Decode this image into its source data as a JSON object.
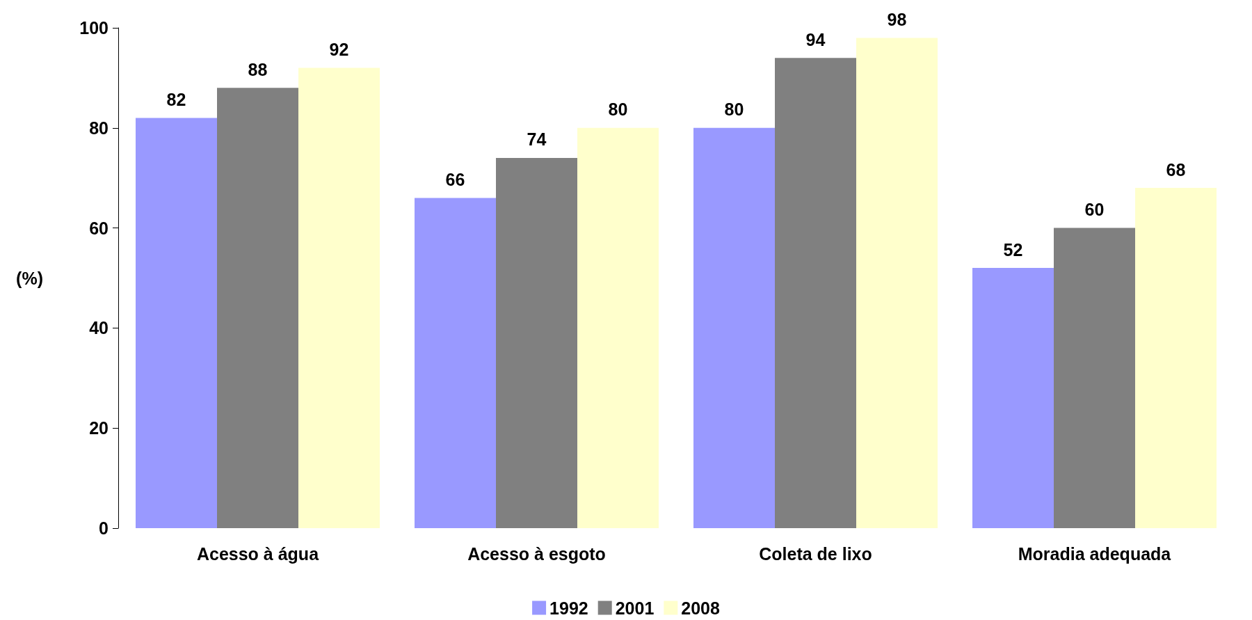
{
  "chart_data": {
    "type": "bar",
    "ylabel": "(%)",
    "categories": [
      "Acesso à água",
      "Acesso à esgoto",
      "Coleta de lixo",
      "Moradia adequada"
    ],
    "series": [
      {
        "name": "1992",
        "color": "#9999ff",
        "values": [
          82,
          66,
          80,
          52
        ]
      },
      {
        "name": "2001",
        "color": "#808080",
        "values": [
          88,
          74,
          94,
          60
        ]
      },
      {
        "name": "2008",
        "color": "#ffffcc",
        "values": [
          92,
          80,
          98,
          68
        ]
      }
    ],
    "ylim": [
      0,
      100
    ],
    "yticks": [
      0,
      20,
      40,
      60,
      80,
      100
    ],
    "grid": false,
    "legend": "bottom",
    "data_labels": true
  }
}
